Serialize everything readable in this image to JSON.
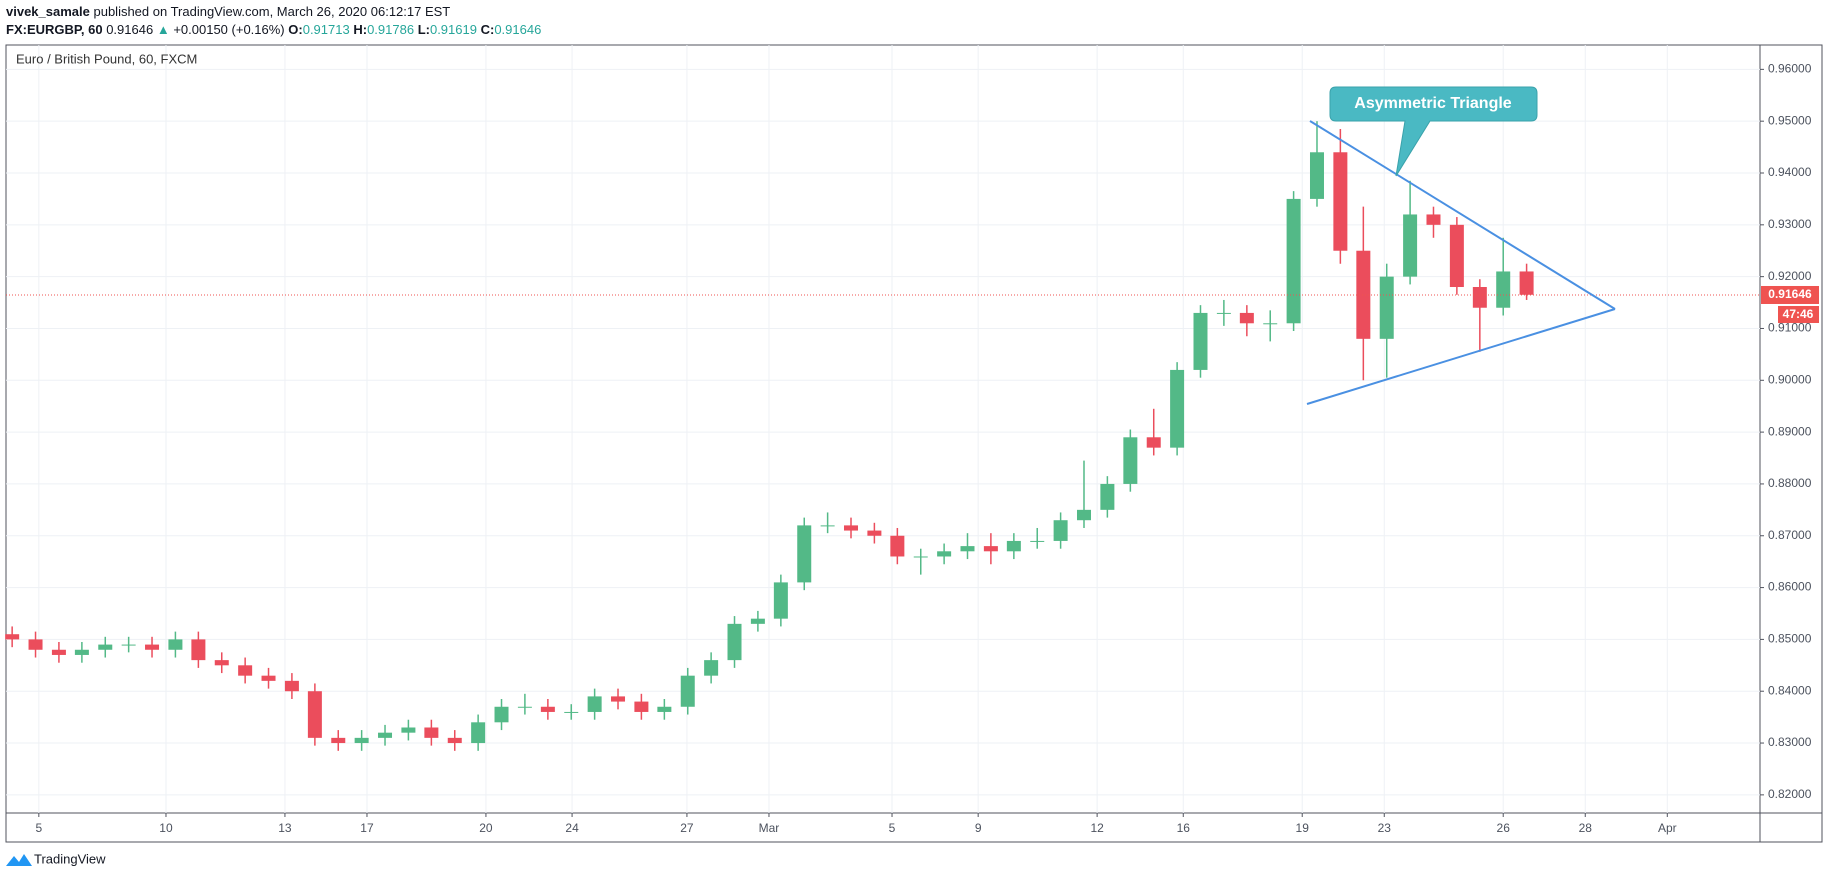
{
  "header": {
    "author": "vivek_samale",
    "published": "published on TradingView.com, March 26, 2020 06:12:17 EST",
    "symbol": "FX:EURGBP, 60",
    "arrow": "▲",
    "change": "+0.00150 (+0.16%)",
    "o_label": "O:",
    "open": 0.91713,
    "h_label": "H:",
    "high": 0.91786,
    "l_label": "L:",
    "low": 0.91619,
    "c_label": "C:",
    "close": 0.91646
  },
  "footer": {
    "brand": "TradingView"
  },
  "chart_data": {
    "type": "candlestick",
    "title": "Euro / British Pound, 60, FXCM",
    "annotation": "Asymmetric Triangle",
    "last_price": 0.91646,
    "countdown": "47:46",
    "last_price_color": "#ef5350",
    "up_color": "#53b987",
    "down_color": "#eb4d5c",
    "grid": true,
    "xlim": [
      -0.8,
      41.96
    ],
    "ylim": [
      0.8165,
      0.9647
    ],
    "xticks": [
      {
        "value": 0,
        "label": "5"
      },
      {
        "value": 3.1,
        "label": "10"
      },
      {
        "value": 6,
        "label": "13"
      },
      {
        "value": 8,
        "label": "17"
      },
      {
        "value": 10.9,
        "label": "20"
      },
      {
        "value": 13,
        "label": "24"
      },
      {
        "value": 15.8,
        "label": "27"
      },
      {
        "value": 17.8,
        "label": "Mar"
      },
      {
        "value": 20.8,
        "label": "5"
      },
      {
        "value": 22.9,
        "label": "9"
      },
      {
        "value": 25.8,
        "label": "12"
      },
      {
        "value": 27.9,
        "label": "16"
      },
      {
        "value": 30.8,
        "label": "19"
      },
      {
        "value": 32.8,
        "label": "23"
      },
      {
        "value": 35.7,
        "label": "26"
      },
      {
        "value": 37.7,
        "label": "28"
      },
      {
        "value": 39.7,
        "label": "Apr"
      }
    ],
    "yticks": [
      {
        "value": 0.82,
        "label": "0.82000"
      },
      {
        "value": 0.83,
        "label": "0.83000"
      },
      {
        "value": 0.84,
        "label": "0.84000"
      },
      {
        "value": 0.85,
        "label": "0.85000"
      },
      {
        "value": 0.86,
        "label": "0.86000"
      },
      {
        "value": 0.87,
        "label": "0.87000"
      },
      {
        "value": 0.88,
        "label": "0.88000"
      },
      {
        "value": 0.89,
        "label": "0.89000"
      },
      {
        "value": 0.9,
        "label": "0.90000"
      },
      {
        "value": 0.91,
        "label": "0.91000"
      },
      {
        "value": 0.92,
        "label": "0.92000"
      },
      {
        "value": 0.93,
        "label": "0.93000"
      },
      {
        "value": 0.94,
        "label": "0.94000"
      },
      {
        "value": 0.95,
        "label": "0.95000"
      },
      {
        "value": 0.96,
        "label": "0.96000"
      }
    ],
    "x": [
      -0.65,
      -0.08,
      0.49,
      1.05,
      1.62,
      2.19,
      2.76,
      3.33,
      3.89,
      4.46,
      5.03,
      5.6,
      6.17,
      6.73,
      7.3,
      7.87,
      8.44,
      9.01,
      9.57,
      10.14,
      10.71,
      11.28,
      11.85,
      12.41,
      12.98,
      13.55,
      14.12,
      14.69,
      15.25,
      15.82,
      16.39,
      16.96,
      17.53,
      18.09,
      18.66,
      19.23,
      19.8,
      20.37,
      20.93,
      21.5,
      22.07,
      22.64,
      23.21,
      23.77,
      24.34,
      24.91,
      25.48,
      26.05,
      26.61,
      27.18,
      27.75,
      28.32,
      28.89,
      29.45,
      30.02,
      30.59,
      31.16,
      31.73,
      32.29,
      32.86,
      33.43,
      34.0,
      34.57,
      35.13,
      35.7,
      36.27
    ],
    "open": [
      0.851,
      0.85,
      0.848,
      0.847,
      0.848,
      0.849,
      0.849,
      0.848,
      0.85,
      0.846,
      0.845,
      0.843,
      0.842,
      0.84,
      0.831,
      0.83,
      0.831,
      0.832,
      0.833,
      0.831,
      0.83,
      0.834,
      0.837,
      0.837,
      0.836,
      0.836,
      0.839,
      0.838,
      0.836,
      0.837,
      0.843,
      0.846,
      0.853,
      0.854,
      0.861,
      0.872,
      0.872,
      0.871,
      0.87,
      0.866,
      0.866,
      0.867,
      0.868,
      0.867,
      0.869,
      0.869,
      0.873,
      0.875,
      0.88,
      0.889,
      0.887,
      0.902,
      0.913,
      0.913,
      0.911,
      0.911,
      0.935,
      0.944,
      0.925,
      0.908,
      0.92,
      0.932,
      0.93,
      0.918,
      0.914,
      0.921
    ],
    "high": [
      0.8525,
      0.8515,
      0.8495,
      0.8495,
      0.8505,
      0.8505,
      0.8505,
      0.8515,
      0.8515,
      0.8475,
      0.8465,
      0.8445,
      0.8435,
      0.8415,
      0.8325,
      0.8325,
      0.8335,
      0.8345,
      0.8345,
      0.8325,
      0.8355,
      0.8385,
      0.8395,
      0.8385,
      0.8375,
      0.8405,
      0.8405,
      0.8395,
      0.8385,
      0.8445,
      0.8475,
      0.8545,
      0.8555,
      0.8625,
      0.8735,
      0.8745,
      0.8735,
      0.8725,
      0.8715,
      0.8675,
      0.8685,
      0.8705,
      0.8705,
      0.8705,
      0.8715,
      0.8745,
      0.8845,
      0.8815,
      0.8905,
      0.8945,
      0.9035,
      0.9145,
      0.9155,
      0.9145,
      0.9135,
      0.9365,
      0.95,
      0.9485,
      0.9335,
      0.9225,
      0.9385,
      0.9335,
      0.9315,
      0.9195,
      0.9275,
      0.9225
    ],
    "low": [
      0.8485,
      0.8465,
      0.8455,
      0.8455,
      0.8465,
      0.8475,
      0.8465,
      0.8465,
      0.8445,
      0.8435,
      0.8415,
      0.8405,
      0.8385,
      0.8295,
      0.8285,
      0.8285,
      0.8295,
      0.8305,
      0.8295,
      0.8285,
      0.8285,
      0.8325,
      0.8355,
      0.8345,
      0.8345,
      0.8345,
      0.8365,
      0.8345,
      0.8345,
      0.8355,
      0.8415,
      0.8445,
      0.8515,
      0.8525,
      0.8595,
      0.8705,
      0.8695,
      0.8685,
      0.8645,
      0.8625,
      0.8645,
      0.8655,
      0.8645,
      0.8655,
      0.8675,
      0.8675,
      0.8715,
      0.8735,
      0.8785,
      0.8855,
      0.8855,
      0.9005,
      0.9105,
      0.9085,
      0.9075,
      0.9095,
      0.9335,
      0.9225,
      0.9,
      0.9005,
      0.9185,
      0.9275,
      0.9165,
      0.9055,
      0.9125,
      0.9155
    ],
    "close": [
      0.85,
      0.848,
      0.847,
      0.848,
      0.849,
      0.849,
      0.848,
      0.85,
      0.846,
      0.845,
      0.843,
      0.842,
      0.84,
      0.831,
      0.83,
      0.831,
      0.832,
      0.833,
      0.831,
      0.83,
      0.834,
      0.837,
      0.837,
      0.836,
      0.836,
      0.839,
      0.838,
      0.836,
      0.837,
      0.843,
      0.846,
      0.853,
      0.854,
      0.861,
      0.872,
      0.872,
      0.871,
      0.87,
      0.866,
      0.866,
      0.867,
      0.868,
      0.867,
      0.869,
      0.869,
      0.873,
      0.875,
      0.88,
      0.889,
      0.887,
      0.902,
      0.913,
      0.913,
      0.911,
      0.911,
      0.935,
      0.944,
      0.925,
      0.908,
      0.92,
      0.932,
      0.93,
      0.918,
      0.914,
      0.921,
      0.9165
    ]
  }
}
